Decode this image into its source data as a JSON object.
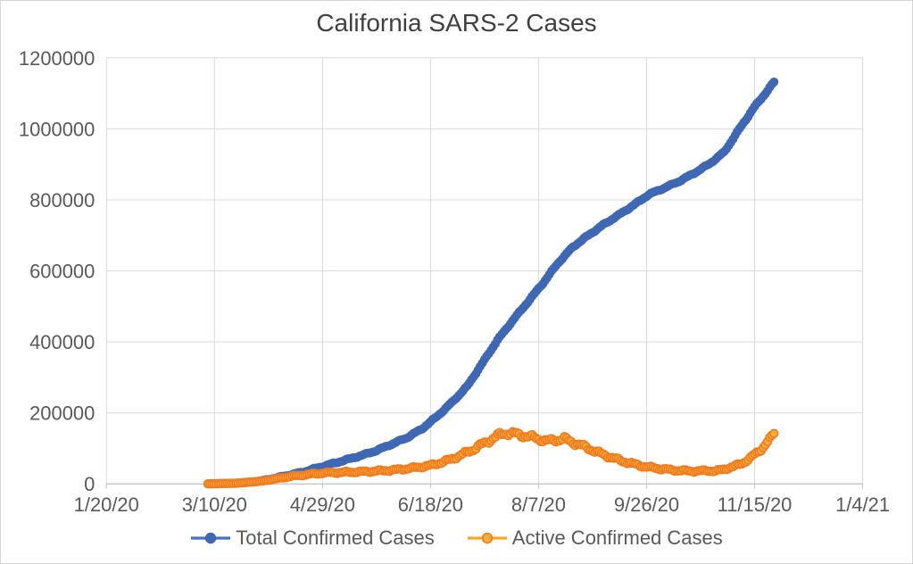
{
  "chart_title": "California SARS-2 Cases",
  "chart_data": {
    "type": "line",
    "title": "California SARS-2 Cases",
    "xlabel": "",
    "ylabel": "",
    "grid": true,
    "legend_position": "bottom",
    "x_axis": {
      "tick_labels": [
        "1/20/20",
        "3/10/20",
        "4/29/20",
        "6/18/20",
        "8/7/20",
        "9/26/20",
        "11/15/20",
        "1/4/21"
      ],
      "tick_interval_days": 50
    },
    "y_axis": {
      "min": 0,
      "max": 1200000,
      "tick_step": 200000,
      "tick_labels": [
        "0",
        "200000",
        "400000",
        "600000",
        "800000",
        "1000000",
        "1200000"
      ]
    },
    "series": [
      {
        "name": "Total Confirmed Cases",
        "line_color": "#4472C4",
        "marker_color": "#3E68B4",
        "marker_stroke": "#3E68B4",
        "points": [
          [
            "3/7/20",
            300
          ],
          [
            "3/15/20",
            1500
          ],
          [
            "3/22/20",
            2700
          ],
          [
            "3/29/20",
            6000
          ],
          [
            "4/5/20",
            14000
          ],
          [
            "4/12/20",
            23000
          ],
          [
            "4/19/20",
            32000
          ],
          [
            "4/26/20",
            44000
          ],
          [
            "5/3/20",
            56000
          ],
          [
            "5/10/20",
            68000
          ],
          [
            "5/17/20",
            80000
          ],
          [
            "5/24/20",
            94000
          ],
          [
            "5/31/20",
            112000
          ],
          [
            "6/7/20",
            130000
          ],
          [
            "6/14/20",
            155000
          ],
          [
            "6/21/20",
            190000
          ],
          [
            "6/28/20",
            230000
          ],
          [
            "7/5/20",
            275000
          ],
          [
            "7/12/20",
            340000
          ],
          [
            "7/19/20",
            405000
          ],
          [
            "7/26/20",
            460000
          ],
          [
            "8/2/20",
            512000
          ],
          [
            "8/9/20",
            565000
          ],
          [
            "8/16/20",
            622000
          ],
          [
            "8/23/20",
            668000
          ],
          [
            "8/30/20",
            700000
          ],
          [
            "9/6/20",
            730000
          ],
          [
            "9/13/20",
            757000
          ],
          [
            "9/20/20",
            785000
          ],
          [
            "9/27/20",
            815000
          ],
          [
            "10/4/20",
            833000
          ],
          [
            "10/11/20",
            852000
          ],
          [
            "10/18/20",
            875000
          ],
          [
            "10/25/20",
            901000
          ],
          [
            "11/1/20",
            935000
          ],
          [
            "11/8/20",
            1000000
          ],
          [
            "11/15/20",
            1062000
          ],
          [
            "11/20/20",
            1100000
          ],
          [
            "11/24/20",
            1132000
          ]
        ]
      },
      {
        "name": "Active Confirmed Cases",
        "line_color": "#FFA629",
        "marker_color": "#FFAD33",
        "marker_stroke": "#EE7D22",
        "points": [
          [
            "3/7/20",
            250
          ],
          [
            "3/20/20",
            2000
          ],
          [
            "4/1/20",
            8000
          ],
          [
            "4/15/20",
            22000
          ],
          [
            "4/29/20",
            31000
          ],
          [
            "5/10/20",
            33000
          ],
          [
            "5/20/20",
            35000
          ],
          [
            "6/1/20",
            39000
          ],
          [
            "6/10/20",
            45000
          ],
          [
            "6/18/20",
            52000
          ],
          [
            "6/25/20",
            64000
          ],
          [
            "7/1/20",
            78000
          ],
          [
            "7/8/20",
            98000
          ],
          [
            "7/15/20",
            122000
          ],
          [
            "7/20/20",
            138000
          ],
          [
            "7/23/20",
            144000
          ],
          [
            "7/27/20",
            141000
          ],
          [
            "8/2/20",
            134000
          ],
          [
            "8/7/20",
            127000
          ],
          [
            "8/11/20",
            121000
          ],
          [
            "8/15/20",
            124000
          ],
          [
            "8/19/20",
            127000
          ],
          [
            "8/23/20",
            117000
          ],
          [
            "8/27/20",
            108000
          ],
          [
            "8/31/20",
            98000
          ],
          [
            "9/5/20",
            85000
          ],
          [
            "9/10/20",
            74000
          ],
          [
            "9/15/20",
            64000
          ],
          [
            "9/20/20",
            56000
          ],
          [
            "9/26/20",
            48000
          ],
          [
            "10/2/20",
            43000
          ],
          [
            "10/8/20",
            39000
          ],
          [
            "10/14/20",
            37000
          ],
          [
            "10/20/20",
            36000
          ],
          [
            "10/24/20",
            38000
          ],
          [
            "10/28/20",
            36000
          ],
          [
            "11/1/20",
            42000
          ],
          [
            "11/5/20",
            48000
          ],
          [
            "11/9/20",
            58000
          ],
          [
            "11/13/20",
            72000
          ],
          [
            "11/16/20",
            88000
          ],
          [
            "11/19/20",
            104000
          ],
          [
            "11/22/20",
            124000
          ],
          [
            "11/24/20",
            142000
          ]
        ]
      }
    ]
  },
  "colors": {
    "title_text": "#404040",
    "axis_text": "#595959",
    "gridline": "#D9D9D9",
    "axis_line": "#BFBFBF",
    "background": "#FFFFFF"
  }
}
